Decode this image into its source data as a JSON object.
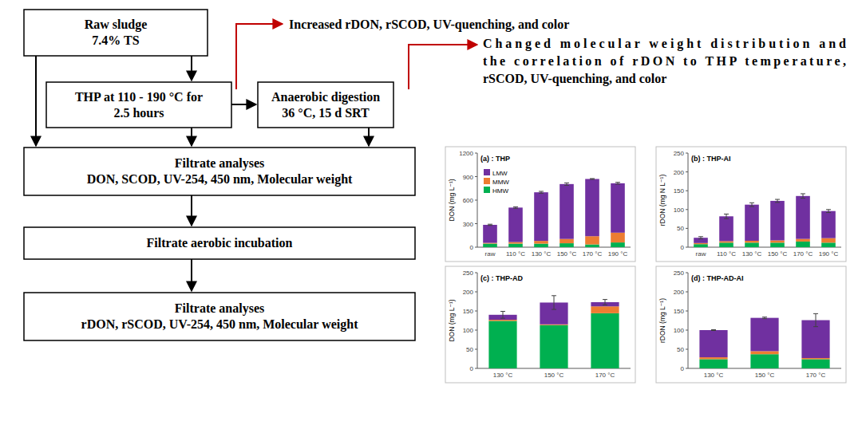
{
  "diagram": {
    "nodes": [
      {
        "lines": [
          "Raw sludge",
          "7.4% TS"
        ]
      },
      {
        "lines": [
          "THP at 110 - 190 °C for",
          "2.5 hours"
        ]
      },
      {
        "lines": [
          "Anaerobic digestion",
          "36 °C, 15 d SRT"
        ]
      },
      {
        "lines": [
          "Filtrate analyses",
          "DON, SCOD, UV-254, 450 nm, Molecular weight"
        ]
      },
      {
        "lines": [
          "Filtrate aerobic incubation"
        ]
      },
      {
        "lines": [
          "Filtrate analyses",
          "rDON, rSCOD, UV-254, 450 nm, Molecular weight"
        ]
      }
    ],
    "annotations": [
      {
        "lines": [
          "Increased rDON, rSCOD, UV-quenching, and color"
        ]
      },
      {
        "lines": [
          "Changed molecular weight distribution and",
          "the correlation of rDON to THP temperature,",
          "rSCOD, UV-quenching, and color"
        ]
      }
    ]
  },
  "chart_data": [
    {
      "type": "bar",
      "stacked": true,
      "title": "(a) : THP",
      "y_label": "DON (mg L⁻¹)",
      "categories": [
        "raw",
        "110 °C",
        "130 °C",
        "150 °C",
        "170 °C",
        "190 °C"
      ],
      "ylim": [
        0,
        1200
      ],
      "yticks": [
        0,
        300,
        600,
        900,
        1200
      ],
      "legend": "upper left",
      "series": [
        {
          "name": "HMW",
          "color": "#00b050",
          "values": [
            45,
            45,
            45,
            50,
            35,
            60
          ]
        },
        {
          "name": "MMW",
          "color": "#ed7d31",
          "values": [
            10,
            20,
            35,
            55,
            105,
            125
          ]
        },
        {
          "name": "LMW",
          "color": "#7030a0",
          "values": [
            230,
            440,
            620,
            700,
            730,
            630
          ]
        }
      ],
      "errors": [
        8,
        10,
        12,
        15,
        5,
        12
      ]
    },
    {
      "type": "bar",
      "stacked": true,
      "title": "(b) : THP-AI",
      "y_label": "rDON (mg N L⁻¹)",
      "categories": [
        "raw",
        "110 °C",
        "130 °C",
        "150 °C",
        "170 °C",
        "190 °C"
      ],
      "ylim": [
        0,
        250
      ],
      "yticks": [
        0,
        50,
        100,
        150,
        200,
        250
      ],
      "legend": false,
      "series": [
        {
          "name": "HMW",
          "color": "#00b050",
          "values": [
            8,
            12,
            12,
            12,
            15,
            12
          ]
        },
        {
          "name": "MMW",
          "color": "#ed7d31",
          "values": [
            3,
            4,
            5,
            6,
            7,
            12
          ]
        },
        {
          "name": "LMW",
          "color": "#7030a0",
          "values": [
            14,
            66,
            96,
            105,
            114,
            72
          ]
        }
      ],
      "errors": [
        3,
        6,
        5,
        4,
        6,
        4
      ]
    },
    {
      "type": "bar",
      "stacked": true,
      "title": "(c) : THP-AD",
      "y_label": "DON (mg L⁻¹)",
      "categories": [
        "130 °C",
        "150 °C",
        "170 °C"
      ],
      "ylim": [
        0,
        250
      ],
      "yticks": [
        0,
        50,
        100,
        150,
        200,
        250
      ],
      "legend": false,
      "series": [
        {
          "name": "HMW",
          "color": "#00b050",
          "values": [
            124,
            113,
            144
          ]
        },
        {
          "name": "MMW",
          "color": "#ed7d31",
          "values": [
            3,
            2,
            18
          ]
        },
        {
          "name": "LMW",
          "color": "#7030a0",
          "values": [
            13,
            57,
            11
          ]
        }
      ],
      "errors": [
        9,
        18,
        7
      ]
    },
    {
      "type": "bar",
      "stacked": true,
      "title": "(d) : THP-AD-AI",
      "y_label": "rDON (mg L⁻¹)",
      "categories": [
        "130 °C",
        "150 °C",
        "170 °C"
      ],
      "ylim": [
        0,
        250
      ],
      "yticks": [
        0,
        50,
        100,
        150,
        200,
        250
      ],
      "legend": false,
      "series": [
        {
          "name": "HMW",
          "color": "#00b050",
          "values": [
            24,
            37,
            24
          ]
        },
        {
          "name": "MMW",
          "color": "#ed7d31",
          "values": [
            5,
            8,
            3
          ]
        },
        {
          "name": "LMW",
          "color": "#7030a0",
          "values": [
            71,
            87,
            99
          ]
        }
      ],
      "errors": [
        1,
        2,
        17
      ]
    }
  ]
}
